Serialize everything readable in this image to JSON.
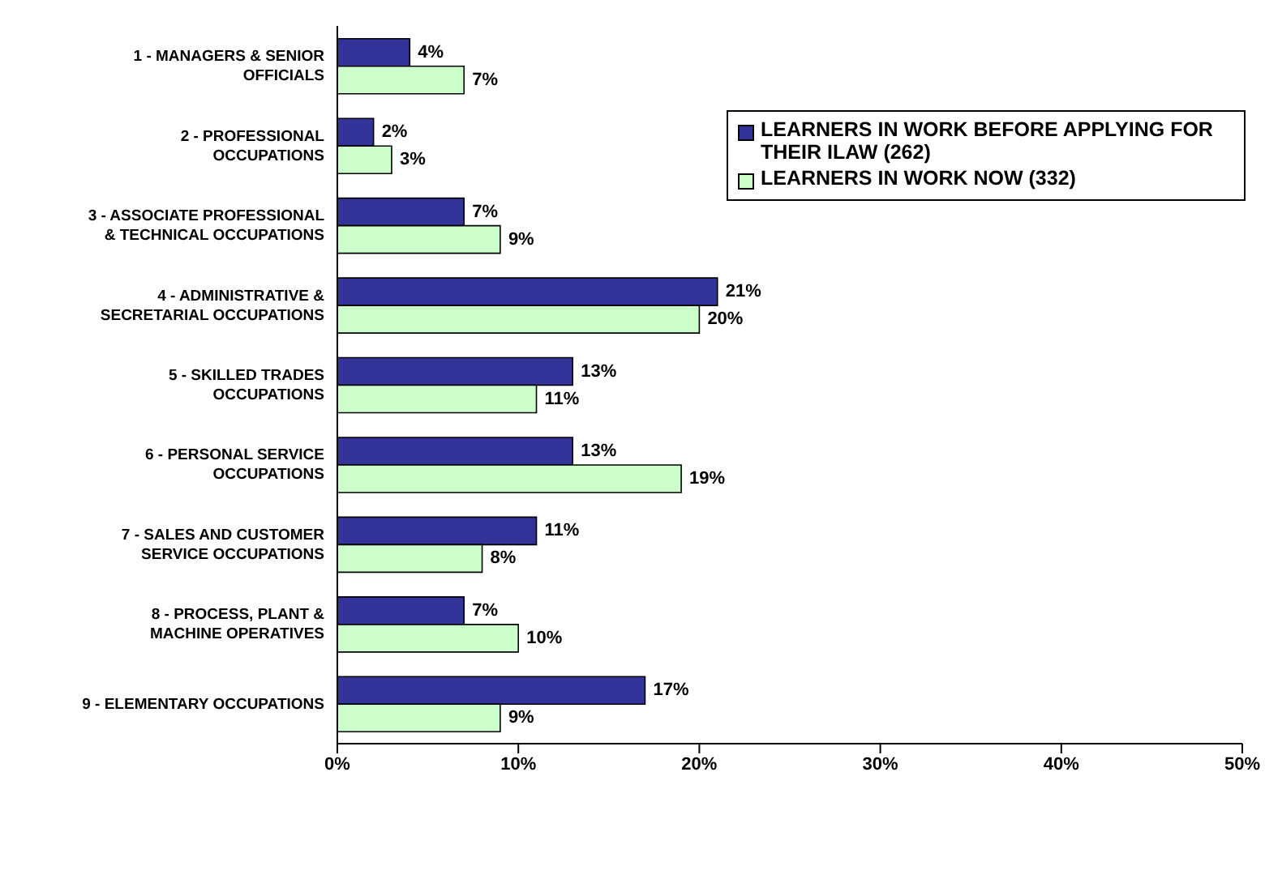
{
  "chart_data": {
    "type": "bar",
    "orientation": "horizontal",
    "categories": [
      "1 - MANAGERS & SENIOR OFFICIALS",
      "2 - PROFESSIONAL OCCUPATIONS",
      "3 - ASSOCIATE PROFESSIONAL & TECHNICAL OCCUPATIONS",
      "4 - ADMINISTRATIVE & SECRETARIAL OCCUPATIONS",
      "5 - SKILLED TRADES OCCUPATIONS",
      "6 - PERSONAL SERVICE OCCUPATIONS",
      "7 - SALES AND CUSTOMER SERVICE OCCUPATIONS",
      "8 - PROCESS, PLANT & MACHINE OPERATIVES",
      "9 - ELEMENTARY OCCUPATIONS"
    ],
    "series": [
      {
        "name": "LEARNERS IN WORK BEFORE APPLYING FOR THEIR ILAW (262)",
        "color": "#333399",
        "values": [
          4,
          2,
          7,
          21,
          13,
          13,
          11,
          7,
          17
        ],
        "value_labels": [
          "4%",
          "2%",
          "7%",
          "21%",
          "13%",
          "13%",
          "11%",
          "7%",
          "17%"
        ]
      },
      {
        "name": "LEARNERS IN WORK NOW (332)",
        "color": "#ccffcc",
        "values": [
          7,
          3,
          9,
          20,
          11,
          19,
          8,
          10,
          9
        ],
        "value_labels": [
          "7%",
          "3%",
          "9%",
          "20%",
          "11%",
          "19%",
          "8%",
          "10%",
          "9%"
        ]
      }
    ],
    "xlim": [
      0,
      50
    ],
    "xticks": [
      {
        "value": 0,
        "label": "0%"
      },
      {
        "value": 10,
        "label": "10%"
      },
      {
        "value": 20,
        "label": "20%"
      },
      {
        "value": 30,
        "label": "30%"
      },
      {
        "value": 40,
        "label": "40%"
      },
      {
        "value": 50,
        "label": "50%"
      }
    ],
    "legend": "top right",
    "grid": false
  }
}
